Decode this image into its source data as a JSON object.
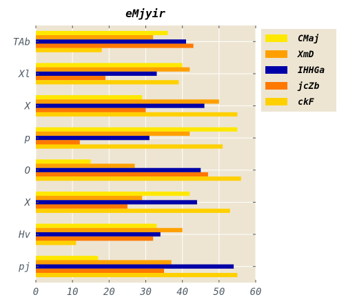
{
  "chart_data": {
    "type": "bar",
    "orientation": "horizontal",
    "title": "eMjyir",
    "xlabel": "",
    "ylabel": "",
    "xlim": [
      0,
      60
    ],
    "xticks": [
      0,
      10,
      20,
      30,
      40,
      50,
      60
    ],
    "grid": true,
    "legend_position": "top-right outside",
    "background_color": "#ede5d2",
    "categories": [
      "TAb",
      "Xl",
      "X",
      "p",
      "O",
      "X",
      "Hv",
      "pj"
    ],
    "series": [
      {
        "name": "CMaj",
        "color": "#ffe800",
        "values": [
          36,
          40,
          29,
          55,
          15,
          42,
          33,
          17
        ]
      },
      {
        "name": "XmD",
        "color": "#ffa000",
        "values": [
          32,
          42,
          50,
          42,
          27,
          29,
          40,
          37
        ]
      },
      {
        "name": "IHHGa",
        "color": "#0000a8",
        "values": [
          41,
          33,
          46,
          31,
          45,
          44,
          34,
          54
        ]
      },
      {
        "name": "jcZb",
        "color": "#ff7800",
        "values": [
          43,
          19,
          30,
          12,
          47,
          25,
          32,
          35
        ]
      },
      {
        "name": "ckF",
        "color": "#ffd000",
        "values": [
          18,
          39,
          55,
          51,
          56,
          53,
          11,
          55
        ]
      }
    ]
  }
}
